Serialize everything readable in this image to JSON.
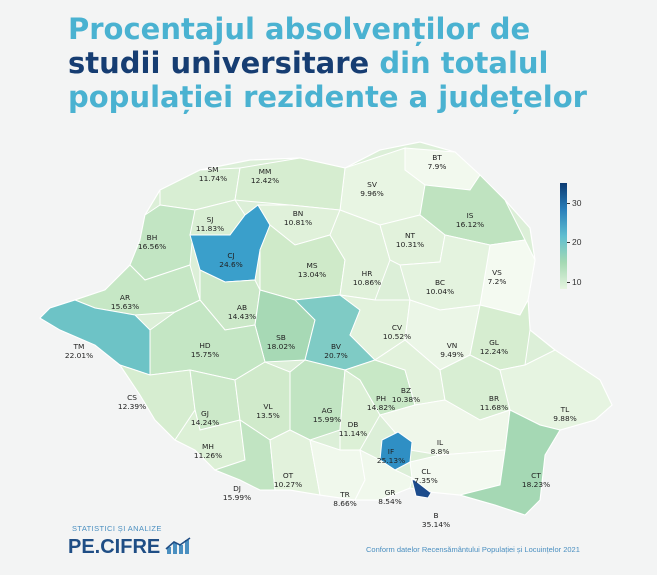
{
  "title": {
    "line1": "Procentajul absolvenților de",
    "line2_bold": "studii universitare",
    "line2_rest": " din totalul",
    "line3": "populației rezidente a județelor"
  },
  "legend": {
    "ticks": [
      "30",
      "20",
      "10"
    ],
    "scale_min": 7,
    "scale_max": 35
  },
  "counties": [
    {
      "code": "SM",
      "value": "11.74%"
    },
    {
      "code": "MM",
      "value": "12.42%"
    },
    {
      "code": "BT",
      "value": "7.9%"
    },
    {
      "code": "SV",
      "value": "9.96%"
    },
    {
      "code": "SJ",
      "value": "11.83%"
    },
    {
      "code": "BN",
      "value": "10.81%"
    },
    {
      "code": "BH",
      "value": "16.56%"
    },
    {
      "code": "IS",
      "value": "16.12%"
    },
    {
      "code": "CJ",
      "value": "24.6%"
    },
    {
      "code": "NT",
      "value": "10.31%"
    },
    {
      "code": "MS",
      "value": "13.04%"
    },
    {
      "code": "HR",
      "value": "10.86%"
    },
    {
      "code": "BC",
      "value": "10.04%"
    },
    {
      "code": "VS",
      "value": "7.2%"
    },
    {
      "code": "AR",
      "value": "15.63%"
    },
    {
      "code": "AB",
      "value": "14.43%"
    },
    {
      "code": "CV",
      "value": "10.52%"
    },
    {
      "code": "SB",
      "value": "18.02%"
    },
    {
      "code": "BV",
      "value": "20.7%"
    },
    {
      "code": "VN",
      "value": "9.49%"
    },
    {
      "code": "GL",
      "value": "12.24%"
    },
    {
      "code": "TM",
      "value": "22.01%"
    },
    {
      "code": "HD",
      "value": "15.75%"
    },
    {
      "code": "BZ",
      "value": "10.38%"
    },
    {
      "code": "BR",
      "value": "11.68%"
    },
    {
      "code": "CS",
      "value": "12.39%"
    },
    {
      "code": "PH",
      "value": "14.82%"
    },
    {
      "code": "TL",
      "value": "9.88%"
    },
    {
      "code": "GJ",
      "value": "14.24%"
    },
    {
      "code": "VL",
      "value": "13.5%"
    },
    {
      "code": "AG",
      "value": "15.99%"
    },
    {
      "code": "DB",
      "value": "11.14%"
    },
    {
      "code": "IL",
      "value": "8.8%"
    },
    {
      "code": "MH",
      "value": "11.26%"
    },
    {
      "code": "IF",
      "value": "25.13%"
    },
    {
      "code": "CL",
      "value": "7.35%"
    },
    {
      "code": "OT",
      "value": "10.27%"
    },
    {
      "code": "CT",
      "value": "18.23%"
    },
    {
      "code": "DJ",
      "value": "15.99%"
    },
    {
      "code": "TR",
      "value": "8.66%"
    },
    {
      "code": "GR",
      "value": "8.54%"
    },
    {
      "code": "B",
      "value": "35.14%"
    }
  ],
  "brand": {
    "tagline": "STATISTICI ȘI ANALIZE",
    "name": "PE.CIFRE"
  },
  "source": "Conform datelor Recensământului Populației și Locuințelor 2021"
}
